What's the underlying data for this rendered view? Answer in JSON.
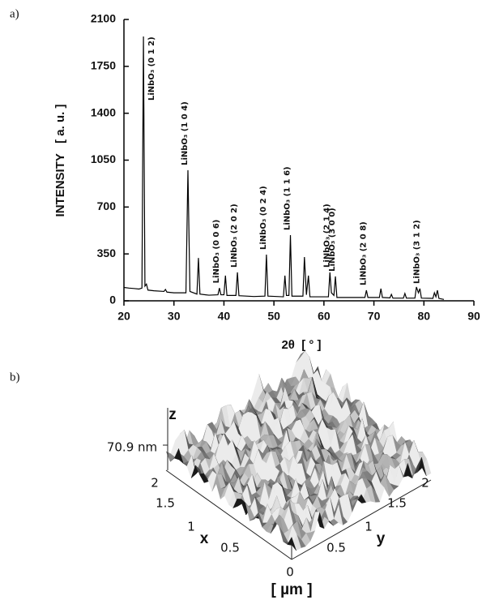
{
  "panel_a_label": "a)",
  "chart_data": {
    "type": "line",
    "y_label": "INTENSITY   [ a. u. ]",
    "x_label": "2θ  [ ° ]",
    "x": [
      20,
      21,
      22,
      23,
      23.6,
      23.9,
      24.2,
      24.5,
      24.8,
      26,
      28,
      28.3,
      28.6,
      30,
      32.4,
      32.8,
      33.2,
      34.6,
      34.9,
      35.2,
      37,
      38.8,
      39.1,
      39.4,
      40,
      40.3,
      40.6,
      42.4,
      42.7,
      43,
      46,
      48.2,
      48.5,
      48.8,
      51.9,
      52.2,
      52.5,
      53,
      53.3,
      53.6,
      55.8,
      56.1,
      56.5,
      56.9,
      57.2,
      60.9,
      61.2,
      61.5,
      62,
      62.3,
      62.6,
      68.2,
      68.5,
      68.8,
      71.1,
      71.4,
      71.7,
      73.2,
      73.5,
      73.8,
      75.9,
      76.2,
      76.5,
      78.2,
      78.5,
      78.9,
      79.2,
      79.5,
      81.8,
      82.1,
      82.4,
      82.7,
      83,
      84
    ],
    "values": [
      100,
      95,
      92,
      88,
      95,
      1973,
      110,
      125,
      80,
      75,
      70,
      85,
      65,
      60,
      60,
      975,
      70,
      50,
      320,
      50,
      42,
      45,
      95,
      45,
      45,
      188,
      40,
      40,
      212,
      38,
      32,
      35,
      345,
      35,
      30,
      188,
      40,
      40,
      490,
      35,
      35,
      327,
      45,
      188,
      30,
      30,
      212,
      60,
      40,
      182,
      25,
      25,
      79,
      25,
      25,
      91,
      25,
      22,
      48,
      20,
      20,
      55,
      20,
      20,
      103,
      60,
      91,
      20,
      18,
      60,
      30,
      79,
      18,
      10
    ],
    "color": "#000000",
    "xlim": [
      20,
      90
    ],
    "xticks": [
      20,
      30,
      40,
      50,
      60,
      70,
      80,
      90
    ],
    "ylim": [
      0,
      2100
    ],
    "yticks": [
      0,
      350,
      700,
      1050,
      1400,
      1750,
      2100
    ],
    "grid": false,
    "annotations": [
      {
        "text": "LiNbO₃ (0 1 2)",
        "x": 23.9
      },
      {
        "text": "LiNbO₃ (1 0 4)",
        "x": 32.8
      },
      {
        "text": "LiNbO₃ (0 0 6)",
        "x": 39.1
      },
      {
        "text": "LiNbO₃ (2 0 2)",
        "x": 42.7
      },
      {
        "text": "LiNbO₃ (0 2 4)",
        "x": 48.5
      },
      {
        "text": "LiNbO₃ (1 1 6)",
        "x": 53.3
      },
      {
        "text": "LiNbO₃ (2 1 4)",
        "x": 61.2
      },
      {
        "text": "LiNbO₃ (3 0 0)",
        "x": 62.3
      },
      {
        "text": "LiNbO₃ (2 0 8)",
        "x": 68.5
      },
      {
        "text": "LiNbO₃ (3 1 2)",
        "x": 79.2
      }
    ]
  },
  "afm": {
    "panel_label": "b)",
    "z_label": "z",
    "z_scale": "70.9 nm",
    "x_label": "x",
    "y_label": "y",
    "x_ticks": [
      2,
      1.5,
      1,
      0.5
    ],
    "origin": 0,
    "y_ticks": [
      0.5,
      1,
      1.5,
      2
    ],
    "unit": "[ µm ]"
  }
}
